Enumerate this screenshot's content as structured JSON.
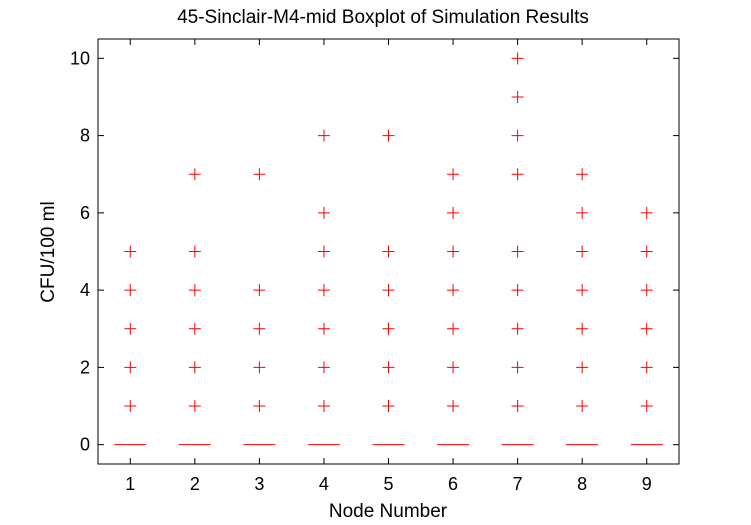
{
  "chart_data": {
    "type": "boxplot",
    "title": "45-Sinclair-M4-mid Boxplot of Simulation Results",
    "xlabel": "Node Number",
    "ylabel": "CFU/100 ml",
    "categories": [
      "1",
      "2",
      "3",
      "4",
      "5",
      "6",
      "7",
      "8",
      "9"
    ],
    "xlim": [
      0.5,
      9.5
    ],
    "ylim": [
      -0.5,
      10.5
    ],
    "yticks": [
      0,
      2,
      4,
      6,
      8,
      10
    ],
    "grid": false,
    "boxes": [
      {
        "node": "1",
        "median": 0,
        "q1": 0,
        "q3": 0,
        "whisker_low": 0,
        "whisker_high": 0,
        "outliers": [
          1,
          2,
          3,
          4,
          5
        ]
      },
      {
        "node": "2",
        "median": 0,
        "q1": 0,
        "q3": 0,
        "whisker_low": 0,
        "whisker_high": 0,
        "outliers": [
          1,
          2,
          3,
          4,
          5,
          7
        ]
      },
      {
        "node": "3",
        "median": 0,
        "q1": 0,
        "q3": 0,
        "whisker_low": 0,
        "whisker_high": 0,
        "outliers": [
          1,
          2,
          3,
          4,
          7
        ]
      },
      {
        "node": "4",
        "median": 0,
        "q1": 0,
        "q3": 0,
        "whisker_low": 0,
        "whisker_high": 0,
        "outliers": [
          1,
          2,
          3,
          4,
          5,
          6,
          8
        ]
      },
      {
        "node": "5",
        "median": 0,
        "q1": 0,
        "q3": 0,
        "whisker_low": 0,
        "whisker_high": 0,
        "outliers": [
          1,
          2,
          3,
          4,
          5,
          8
        ]
      },
      {
        "node": "6",
        "median": 0,
        "q1": 0,
        "q3": 0,
        "whisker_low": 0,
        "whisker_high": 0,
        "outliers": [
          1,
          2,
          3,
          4,
          5,
          6,
          7
        ]
      },
      {
        "node": "7",
        "median": 0,
        "q1": 0,
        "q3": 0,
        "whisker_low": 0,
        "whisker_high": 0,
        "outliers": [
          1,
          2,
          3,
          4,
          5,
          7,
          8,
          9,
          10
        ]
      },
      {
        "node": "8",
        "median": 0,
        "q1": 0,
        "q3": 0,
        "whisker_low": 0,
        "whisker_high": 0,
        "outliers": [
          1,
          2,
          3,
          4,
          5,
          6,
          7
        ]
      },
      {
        "node": "9",
        "median": 0,
        "q1": 0,
        "q3": 0,
        "whisker_low": 0,
        "whisker_high": 0,
        "outliers": [
          1,
          2,
          3,
          4,
          5,
          6
        ]
      }
    ],
    "colors": {
      "median": "#ff0000",
      "outlier": "#ff0000",
      "axes": "#000000"
    }
  }
}
